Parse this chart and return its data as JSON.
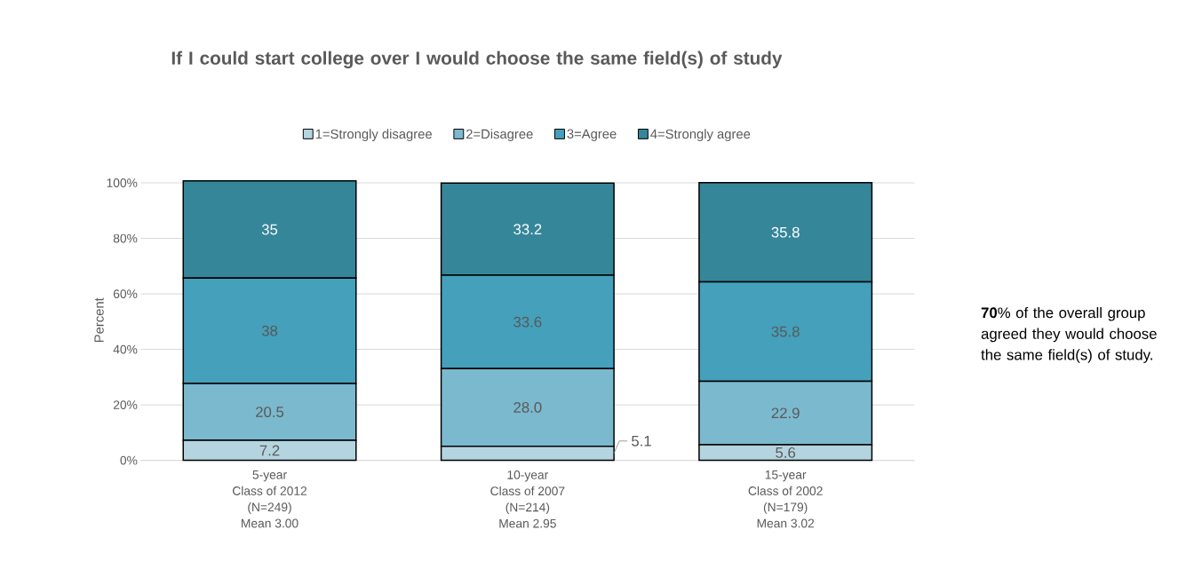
{
  "chart_data": {
    "type": "bar",
    "stacked": true,
    "title": "If I could start college over I would choose the same field(s) of study",
    "ylabel": "Percent",
    "categories": [
      "5-year\nClass of 2012\n(N=249)\nMean 3.00",
      "10-year\nClass of 2007\n(N=214)\nMean 2.95",
      "15-year\nClass of 2002\n(N=179)\nMean 3.02"
    ],
    "series": [
      {
        "name": "1=Strongly disagree",
        "color": "#b4d5e0",
        "values": [
          7.2,
          5.1,
          5.6
        ],
        "value_labels": [
          "7.2",
          "5.1",
          "5.6"
        ]
      },
      {
        "name": "2=Disagree",
        "color": "#7bb9cf",
        "values": [
          20.5,
          28.0,
          22.9
        ],
        "value_labels": [
          "20.5",
          "28.0",
          "22.9"
        ]
      },
      {
        "name": "3=Agree",
        "color": "#44a0bb",
        "values": [
          38,
          33.6,
          35.8
        ],
        "value_labels": [
          "38",
          "33.6",
          "35.8"
        ]
      },
      {
        "name": "4=Strongly agree",
        "color": "#36869a",
        "values": [
          35,
          33.2,
          35.8
        ],
        "value_labels": [
          "35",
          "33.2",
          "35.8"
        ]
      }
    ],
    "ylim": [
      0,
      101
    ],
    "yticks": [
      {
        "value": 0,
        "label": "0%"
      },
      {
        "value": 20,
        "label": "20%"
      },
      {
        "value": 40,
        "label": "40%"
      },
      {
        "value": 60,
        "label": "60%"
      },
      {
        "value": 80,
        "label": "80%"
      },
      {
        "value": 100,
        "label": "100%"
      }
    ],
    "grid": "y",
    "legend": "top",
    "annotations": [
      "**70**% of the overall group agreed they would choose the same field(s) of study."
    ]
  }
}
